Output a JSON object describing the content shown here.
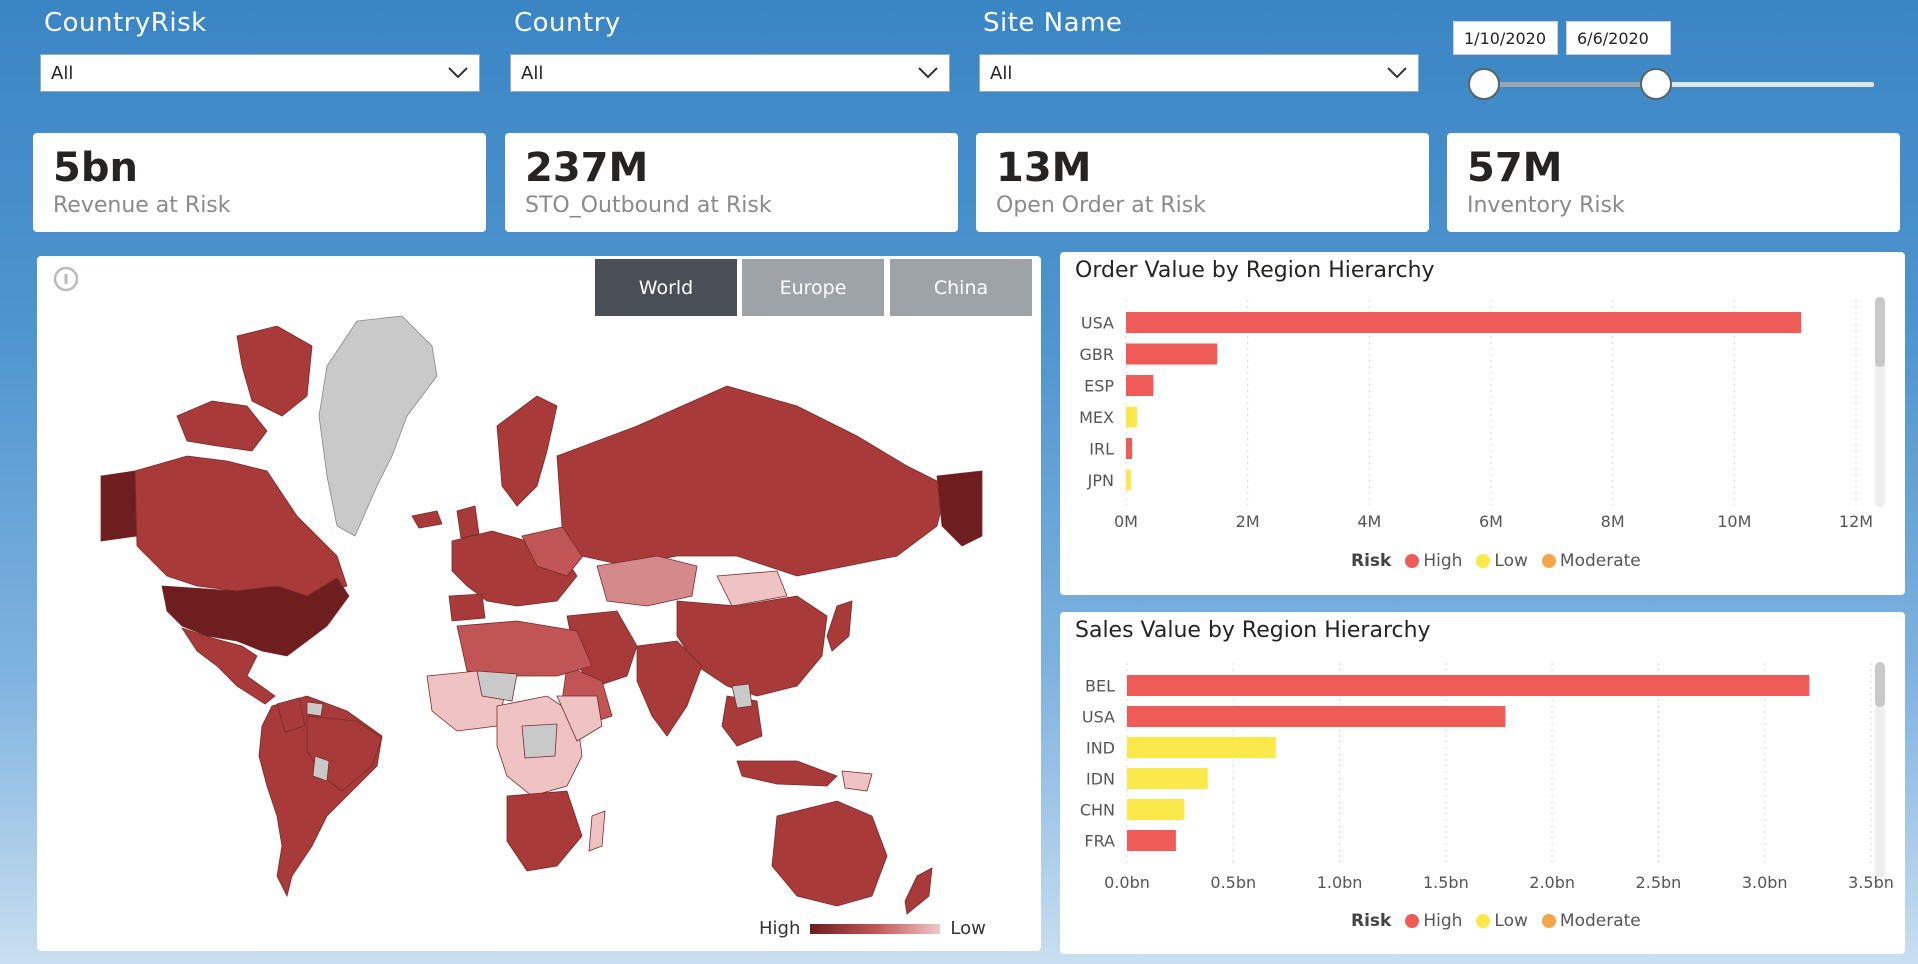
{
  "slicers": [
    {
      "title": "CountryRisk",
      "value": "All"
    },
    {
      "title": "Country",
      "value": "All"
    },
    {
      "title": "Site Name",
      "value": "All"
    }
  ],
  "date_range": {
    "start": "1/10/2020",
    "end": "6/6/2020",
    "start_fraction": 0.0,
    "end_fraction": 0.44
  },
  "kpis": [
    {
      "value": "5bn",
      "label": "Revenue at Risk"
    },
    {
      "value": "237M",
      "label": "STO_Outbound at Risk"
    },
    {
      "value": "13M",
      "label": "Open Order at Risk"
    },
    {
      "value": "57M",
      "label": "Inventory Risk"
    }
  ],
  "map": {
    "tabs": [
      "World",
      "Europe",
      "China"
    ],
    "active_tab": "World",
    "legend_high": "High",
    "legend_low": "Low",
    "colors": {
      "high": "#6e1e1e",
      "mid": "#a83a3a",
      "low": "#f0b9b9",
      "none": "#c9c9c9"
    }
  },
  "risk_legend": {
    "title": "Risk",
    "items": [
      {
        "label": "High",
        "color": "#ef5b56"
      },
      {
        "label": "Low",
        "color": "#fbe84a"
      },
      {
        "label": "Moderate",
        "color": "#f5a54a"
      }
    ]
  },
  "chart_data": [
    {
      "type": "bar",
      "orientation": "horizontal",
      "title": "Order Value by Region Hierarchy",
      "categories": [
        "USA",
        "GBR",
        "ESP",
        "MEX",
        "IRL",
        "JPN"
      ],
      "values": [
        11100000,
        1500000,
        450000,
        180000,
        100000,
        80000
      ],
      "risk": [
        "High",
        "High",
        "High",
        "Low",
        "High",
        "Low"
      ],
      "xlim": [
        0,
        12000000
      ],
      "xticks": [
        "0M",
        "2M",
        "4M",
        "6M",
        "8M",
        "10M",
        "12M"
      ],
      "legend_title": "Risk"
    },
    {
      "type": "bar",
      "orientation": "horizontal",
      "title": "Sales Value by Region Hierarchy",
      "categories": [
        "BEL",
        "USA",
        "IND",
        "IDN",
        "CHN",
        "FRA"
      ],
      "values": [
        3210000000,
        1780000000,
        700000000,
        380000000,
        270000000,
        230000000
      ],
      "risk": [
        "High",
        "High",
        "Low",
        "Low",
        "Low",
        "High"
      ],
      "xlim": [
        0,
        3500000000
      ],
      "xticks": [
        "0.0bn",
        "0.5bn",
        "1.0bn",
        "1.5bn",
        "2.0bn",
        "2.5bn",
        "3.0bn",
        "3.5bn"
      ],
      "legend_title": "Risk"
    }
  ]
}
